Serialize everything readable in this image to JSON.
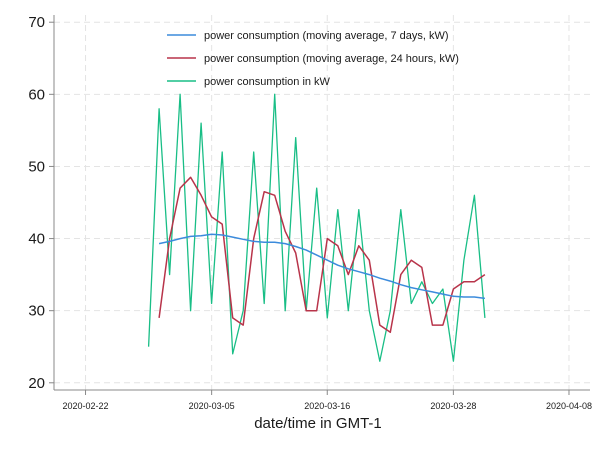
{
  "chart_data": {
    "type": "line",
    "xlabel": "date/time in GMT-1",
    "ylabel": "",
    "x_ticks": [
      "2020-02-22",
      "2020-03-05",
      "2020-03-16",
      "2020-03-28",
      "2020-04-08"
    ],
    "y_ticks": [
      "20",
      "30",
      "40",
      "50",
      "60",
      "70"
    ],
    "ylim": [
      19,
      71
    ],
    "xlim": [
      "2020-02-19",
      "2020-04-10"
    ],
    "grid": true,
    "legend_position": "top",
    "colors": {
      "ma7": "#3b8bdc",
      "ma24": "#b8344a",
      "raw": "#19be86",
      "grid": "#e4e4e4",
      "axis": "#888888"
    },
    "series": [
      {
        "key": "ma7",
        "name": "power consumption (moving average, 7 days, kW)",
        "x": [
          "2020-02-29",
          "2020-03-01",
          "2020-03-02",
          "2020-03-03",
          "2020-03-04",
          "2020-03-05",
          "2020-03-06",
          "2020-03-07",
          "2020-03-08",
          "2020-03-09",
          "2020-03-10",
          "2020-03-11",
          "2020-03-12",
          "2020-03-13",
          "2020-03-14",
          "2020-03-15",
          "2020-03-16",
          "2020-03-17",
          "2020-03-18",
          "2020-03-19",
          "2020-03-20",
          "2020-03-21",
          "2020-03-22",
          "2020-03-23",
          "2020-03-24",
          "2020-03-25",
          "2020-03-26",
          "2020-03-27",
          "2020-03-28",
          "2020-03-29",
          "2020-03-30",
          "2020-03-31"
        ],
        "y": [
          39.3,
          39.6,
          40.0,
          40.3,
          40.4,
          40.6,
          40.5,
          40.2,
          39.9,
          39.6,
          39.5,
          39.5,
          39.3,
          38.9,
          38.4,
          37.7,
          37.0,
          36.3,
          35.8,
          35.4,
          35.0,
          34.5,
          34.1,
          33.6,
          33.2,
          32.9,
          32.6,
          32.3,
          32.0,
          31.9,
          31.9,
          31.7
        ]
      },
      {
        "key": "ma24",
        "name": "power consumption (moving average, 24 hours, kW)",
        "x": [
          "2020-02-29",
          "2020-03-01",
          "2020-03-02",
          "2020-03-03",
          "2020-03-04",
          "2020-03-05",
          "2020-03-06",
          "2020-03-07",
          "2020-03-08",
          "2020-03-09",
          "2020-03-10",
          "2020-03-11",
          "2020-03-12",
          "2020-03-13",
          "2020-03-14",
          "2020-03-15",
          "2020-03-16",
          "2020-03-17",
          "2020-03-18",
          "2020-03-19",
          "2020-03-20",
          "2020-03-21",
          "2020-03-22",
          "2020-03-23",
          "2020-03-24",
          "2020-03-25",
          "2020-03-26",
          "2020-03-27",
          "2020-03-28",
          "2020-03-29",
          "2020-03-30",
          "2020-03-31"
        ],
        "y": [
          29,
          40,
          47,
          48.5,
          46,
          43,
          42,
          29,
          28,
          40,
          46.5,
          46,
          41,
          38,
          30,
          30,
          40,
          39,
          35,
          39,
          37,
          28,
          27,
          35,
          37,
          36,
          28,
          28,
          33,
          34,
          34,
          35
        ]
      },
      {
        "key": "raw",
        "name": "power consumption in kW",
        "x": [
          "2020-02-28",
          "2020-02-29",
          "2020-03-01",
          "2020-03-02",
          "2020-03-03",
          "2020-03-04",
          "2020-03-05",
          "2020-03-06",
          "2020-03-07",
          "2020-03-08",
          "2020-03-09",
          "2020-03-10",
          "2020-03-11",
          "2020-03-12",
          "2020-03-13",
          "2020-03-14",
          "2020-03-15",
          "2020-03-16",
          "2020-03-17",
          "2020-03-18",
          "2020-03-19",
          "2020-03-20",
          "2020-03-21",
          "2020-03-22",
          "2020-03-23",
          "2020-03-24",
          "2020-03-25",
          "2020-03-26",
          "2020-03-27",
          "2020-03-28",
          "2020-03-29",
          "2020-03-30",
          "2020-03-31"
        ],
        "y": [
          25,
          58,
          35,
          60,
          30,
          56,
          31,
          52,
          24,
          30,
          52,
          31,
          60,
          30,
          54,
          30,
          47,
          29,
          44,
          30,
          44,
          30,
          23,
          30,
          44,
          31,
          34,
          31,
          33,
          23,
          37,
          46,
          29
        ]
      }
    ]
  }
}
